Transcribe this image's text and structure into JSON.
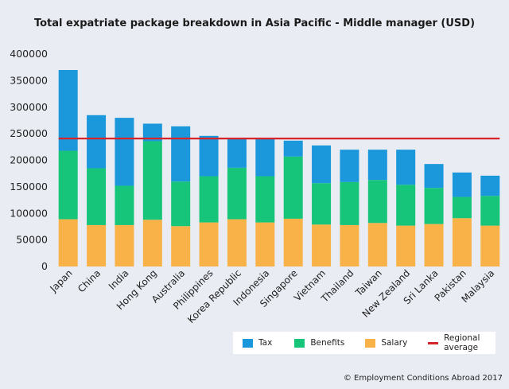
{
  "chart_data": {
    "type": "bar",
    "stacked": true,
    "title": "Total expatriate package breakdown in Asia Pacific - Middle manager (USD)",
    "categories": [
      "Japan",
      "China",
      "India",
      "Hong Kong",
      "Australia",
      "Philippines",
      "Korea Republic",
      "Indonesia",
      "Singapore",
      "Vietnam",
      "Thailand",
      "Taiwan",
      "New Zealand",
      "Sri Lanka",
      "Pakistan",
      "Malaysia"
    ],
    "series": [
      {
        "name": "Salary",
        "color": "#f9b248",
        "values": [
          89000,
          78000,
          78000,
          88000,
          76000,
          83000,
          89000,
          83000,
          90000,
          79000,
          78000,
          82000,
          77000,
          80000,
          91000,
          77000
        ]
      },
      {
        "name": "Benefits",
        "color": "#16c47a",
        "values": [
          129000,
          107000,
          74000,
          148000,
          84000,
          87000,
          97000,
          87000,
          117000,
          78000,
          81000,
          81000,
          77000,
          68000,
          40000,
          56000
        ]
      },
      {
        "name": "Tax",
        "color": "#1b97db",
        "values": [
          152000,
          100000,
          128000,
          33000,
          104000,
          76000,
          54000,
          70000,
          30000,
          71000,
          61000,
          57000,
          66000,
          45000,
          46000,
          38000
        ]
      }
    ],
    "reference_line": {
      "name": "Regional average",
      "value": 241000,
      "color": "#d7242a"
    },
    "ylim": [
      0,
      400000
    ],
    "yticks": [
      0,
      50000,
      100000,
      150000,
      200000,
      250000,
      300000,
      350000,
      400000
    ],
    "ytick_labels": [
      "0",
      "50000",
      "100000",
      "150000",
      "200000",
      "250000",
      "300000",
      "350000",
      "400000"
    ],
    "legend_position": "bottom-right",
    "grid": false
  },
  "legend": {
    "tax": "Tax",
    "benefits": "Benefits",
    "salary": "Salary",
    "regional_average": "Regional average"
  },
  "footer": "© Employment Conditions Abroad 2017"
}
